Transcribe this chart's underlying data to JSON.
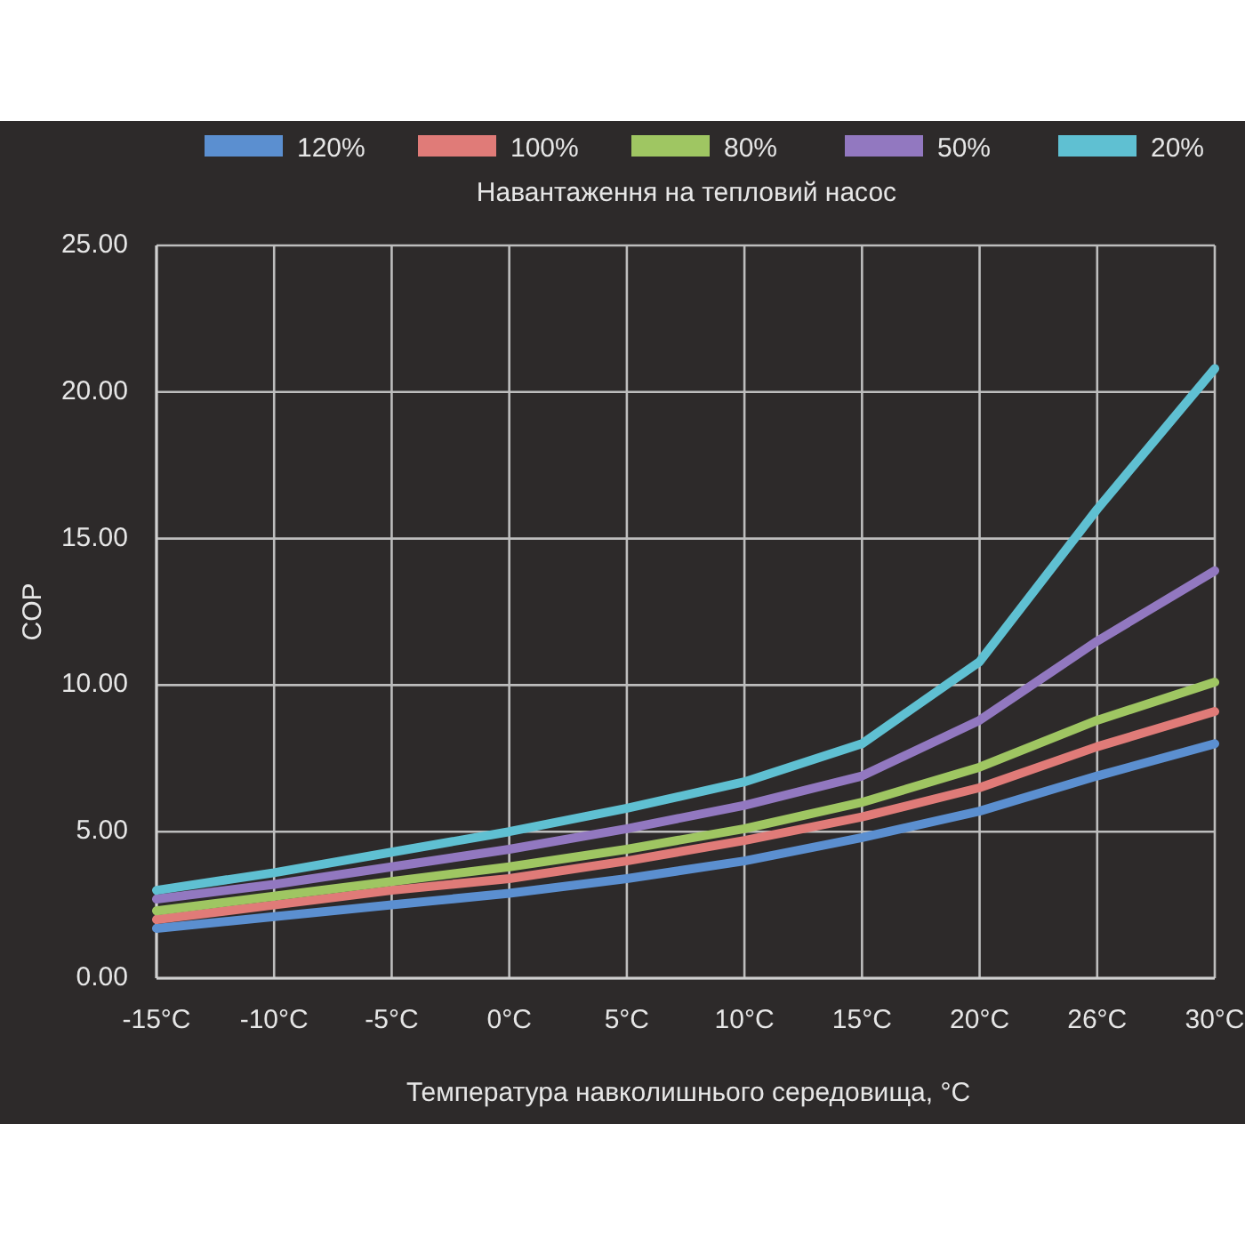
{
  "chart_data": {
    "type": "line",
    "legend_title": "Навантаження на тепловий насос",
    "xlabel": "Температура навколишнього середовища, °C",
    "ylabel": "COP",
    "categories": [
      "-15°C",
      "-10°C",
      "-5°C",
      "0°C",
      "5°C",
      "10°C",
      "15°C",
      "20°C",
      "26°C",
      "30°C"
    ],
    "series": [
      {
        "name": "120%",
        "color": "#5b8fd0",
        "values": [
          1.7,
          2.1,
          2.5,
          2.9,
          3.4,
          4.0,
          4.8,
          5.7,
          6.9,
          8.0
        ]
      },
      {
        "name": "100%",
        "color": "#e07b78",
        "values": [
          2.0,
          2.5,
          3.0,
          3.4,
          4.0,
          4.7,
          5.5,
          6.5,
          7.9,
          9.1
        ]
      },
      {
        "name": "80%",
        "color": "#9fc662",
        "values": [
          2.3,
          2.8,
          3.3,
          3.8,
          4.4,
          5.1,
          6.0,
          7.2,
          8.8,
          10.1
        ]
      },
      {
        "name": "50%",
        "color": "#9278c0",
        "values": [
          2.7,
          3.2,
          3.8,
          4.4,
          5.1,
          5.9,
          6.9,
          8.8,
          11.5,
          13.9
        ]
      },
      {
        "name": "20%",
        "color": "#5fc0d2",
        "values": [
          3.0,
          3.6,
          4.3,
          5.0,
          5.8,
          6.7,
          8.0,
          10.8,
          16.0,
          20.8
        ]
      }
    ],
    "ylim": [
      0,
      25
    ],
    "yticks": [
      {
        "value": 0,
        "label": "0.00"
      },
      {
        "value": 5,
        "label": "5.00"
      },
      {
        "value": 10,
        "label": "10.00"
      },
      {
        "value": 15,
        "label": "15.00"
      },
      {
        "value": 20,
        "label": "20.00"
      },
      {
        "value": 25,
        "label": "25.00"
      }
    ],
    "grid": true,
    "legend": "top",
    "marker": "none",
    "line_style": "solid"
  }
}
